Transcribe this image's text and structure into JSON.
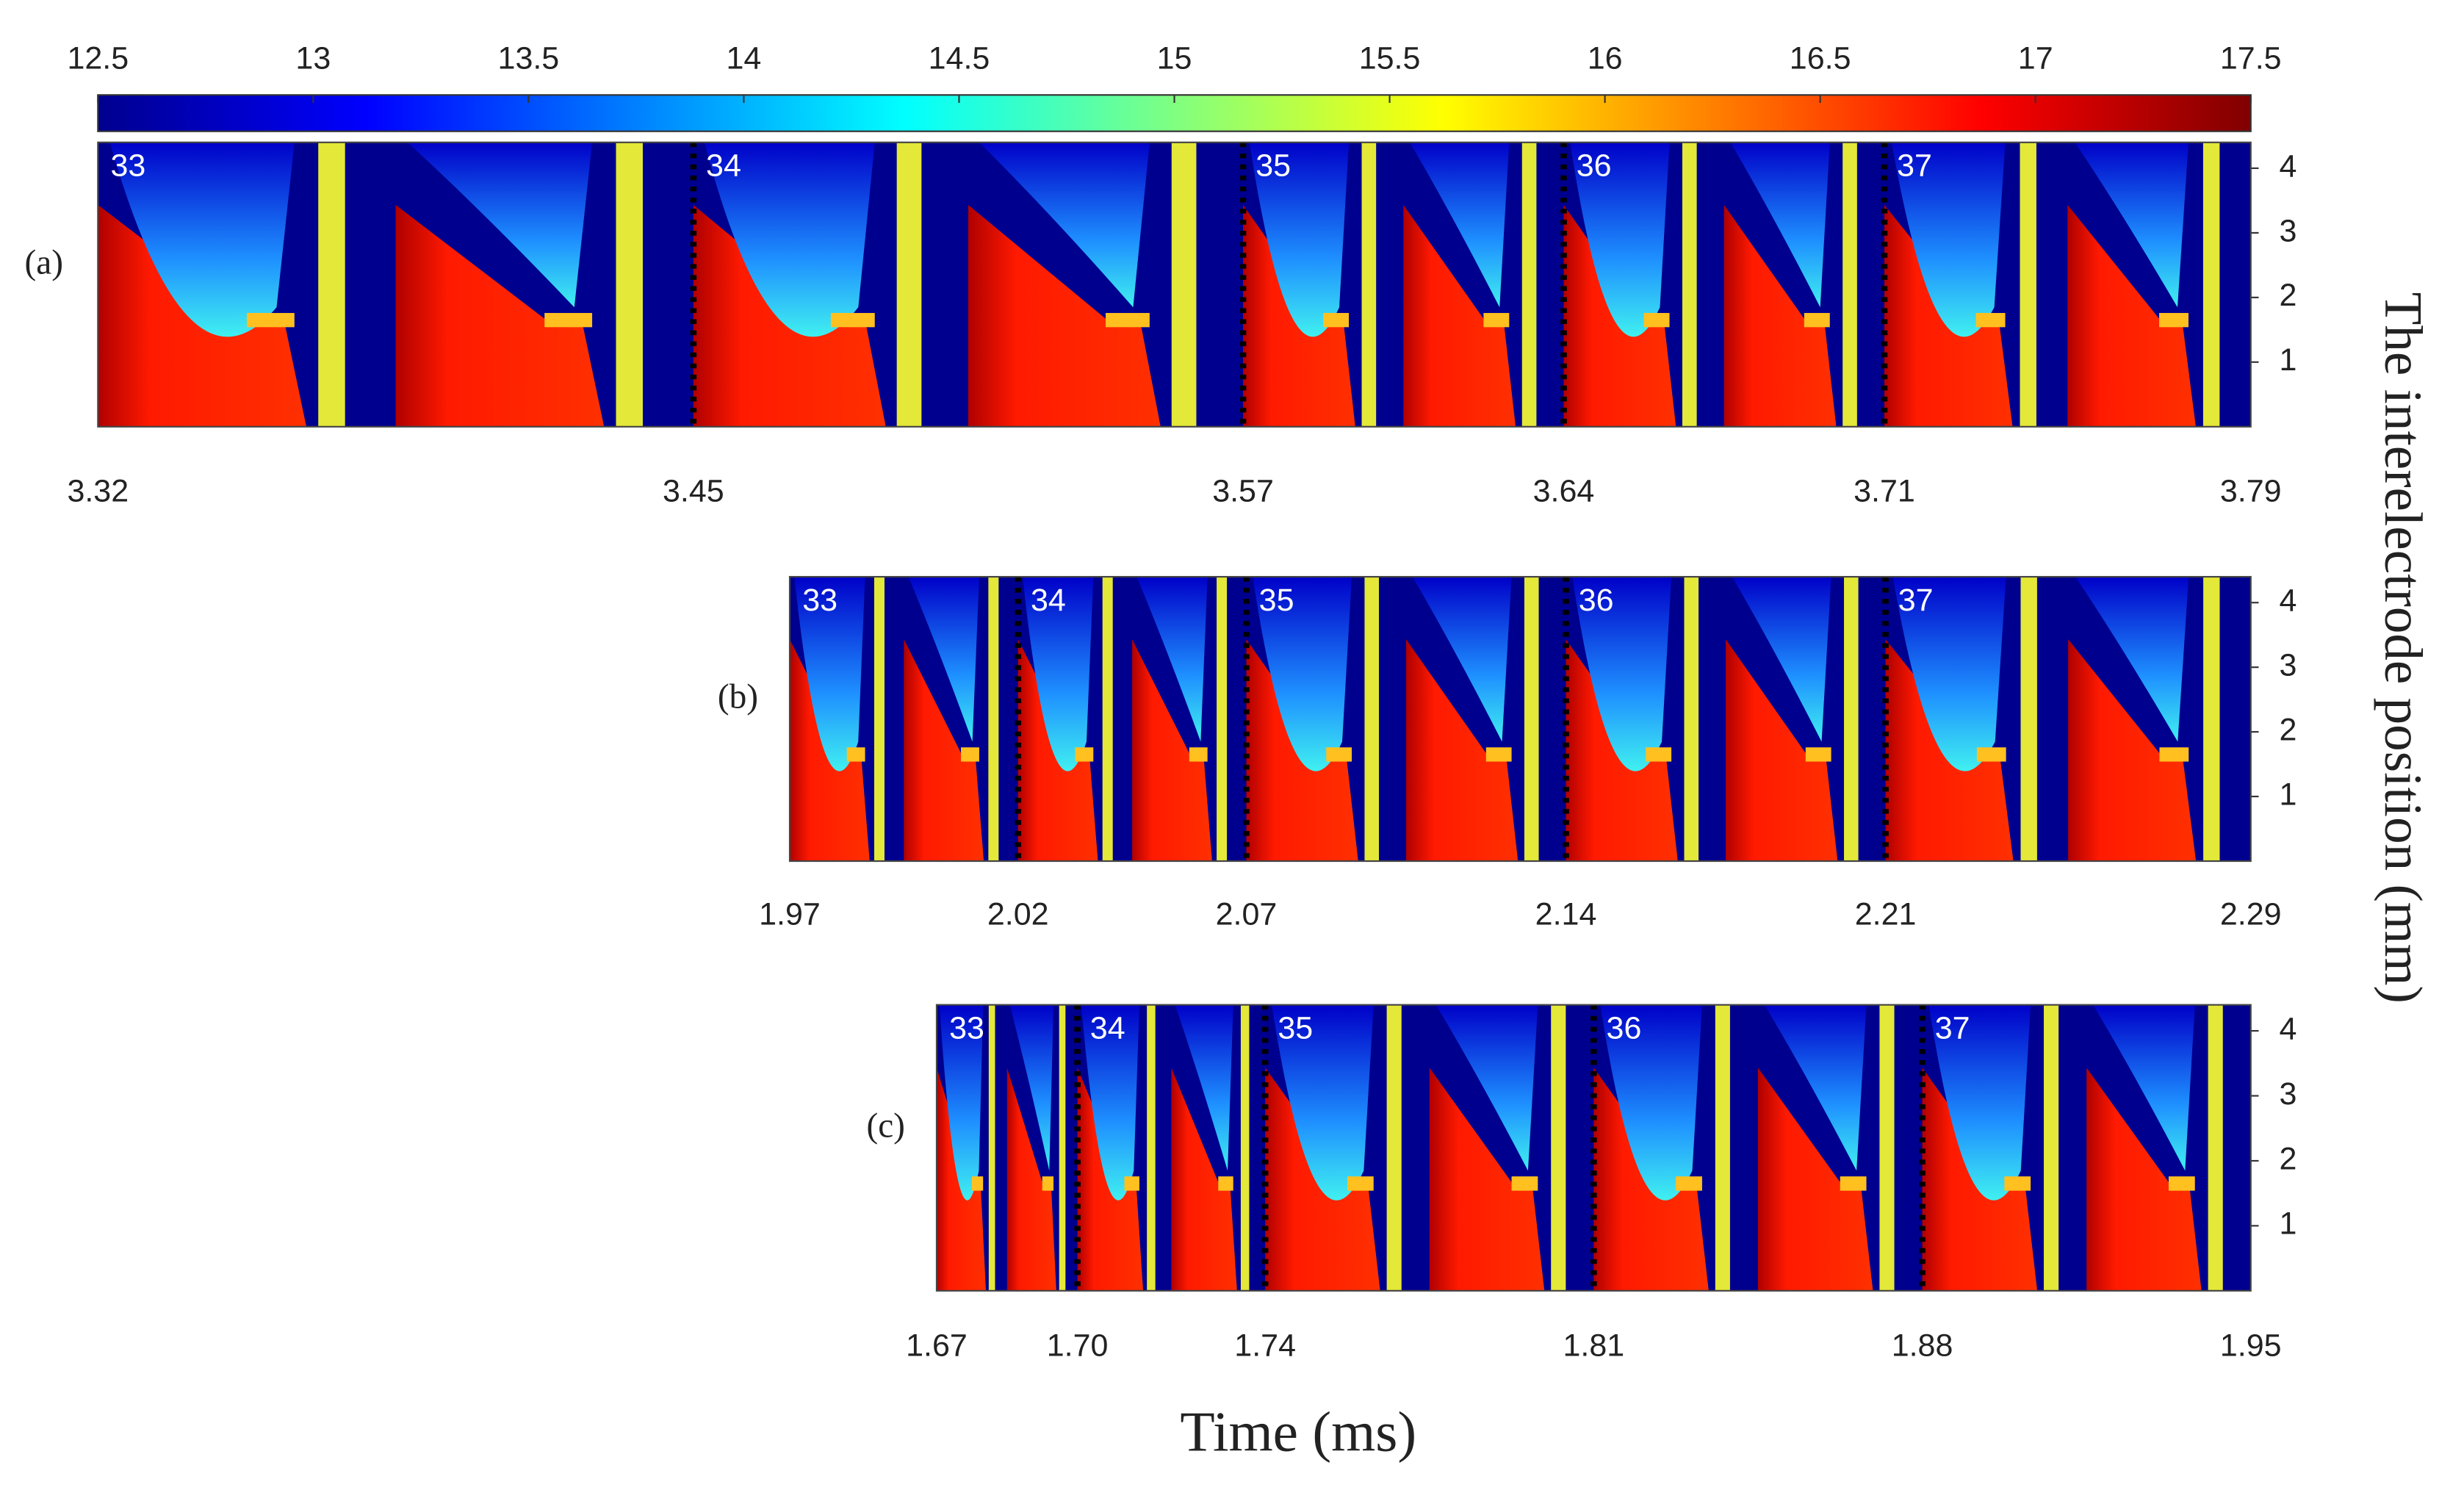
{
  "colorbar": {
    "lim": [
      12.5,
      17.5
    ],
    "ticks": [
      12.5,
      13,
      13.5,
      14,
      14.5,
      15,
      15.5,
      16,
      16.5,
      17,
      17.5
    ],
    "colors": [
      "#00008f",
      "#0000ff",
      "#0080ff",
      "#00ffff",
      "#80ff80",
      "#ffff00",
      "#ff8000",
      "#ff0000",
      "#800000"
    ]
  },
  "xlabel": "Time (ms)",
  "ylabel": "The interelectrode position (mm)",
  "chart_data": [
    {
      "type": "heatmap",
      "label": "(a)",
      "xlim": [
        3.32,
        3.79
      ],
      "xticks": [
        3.32,
        3.45,
        3.57,
        3.64,
        3.71,
        3.79
      ],
      "ylim": [
        0,
        4.4
      ],
      "yticks": [
        1,
        2,
        3,
        4
      ],
      "annotations": [
        33,
        34,
        35,
        36,
        37
      ]
    },
    {
      "type": "heatmap",
      "label": "(b)",
      "xlim": [
        1.97,
        2.29
      ],
      "xticks": [
        1.97,
        2.02,
        2.07,
        2.14,
        2.21,
        2.29
      ],
      "ylim": [
        0,
        4.4
      ],
      "yticks": [
        1,
        2,
        3,
        4
      ],
      "annotations": [
        33,
        34,
        35,
        36,
        37
      ]
    },
    {
      "type": "heatmap",
      "label": "(c)",
      "xlim": [
        1.67,
        1.95
      ],
      "xticks": [
        1.67,
        {
          "value": 1.7,
          "label": "1.70"
        },
        1.74,
        1.81,
        1.88,
        1.95
      ],
      "ylim": [
        0,
        4.4
      ],
      "yticks": [
        1,
        2,
        3,
        4
      ],
      "annotations": [
        33,
        34,
        35,
        36,
        37
      ]
    }
  ]
}
